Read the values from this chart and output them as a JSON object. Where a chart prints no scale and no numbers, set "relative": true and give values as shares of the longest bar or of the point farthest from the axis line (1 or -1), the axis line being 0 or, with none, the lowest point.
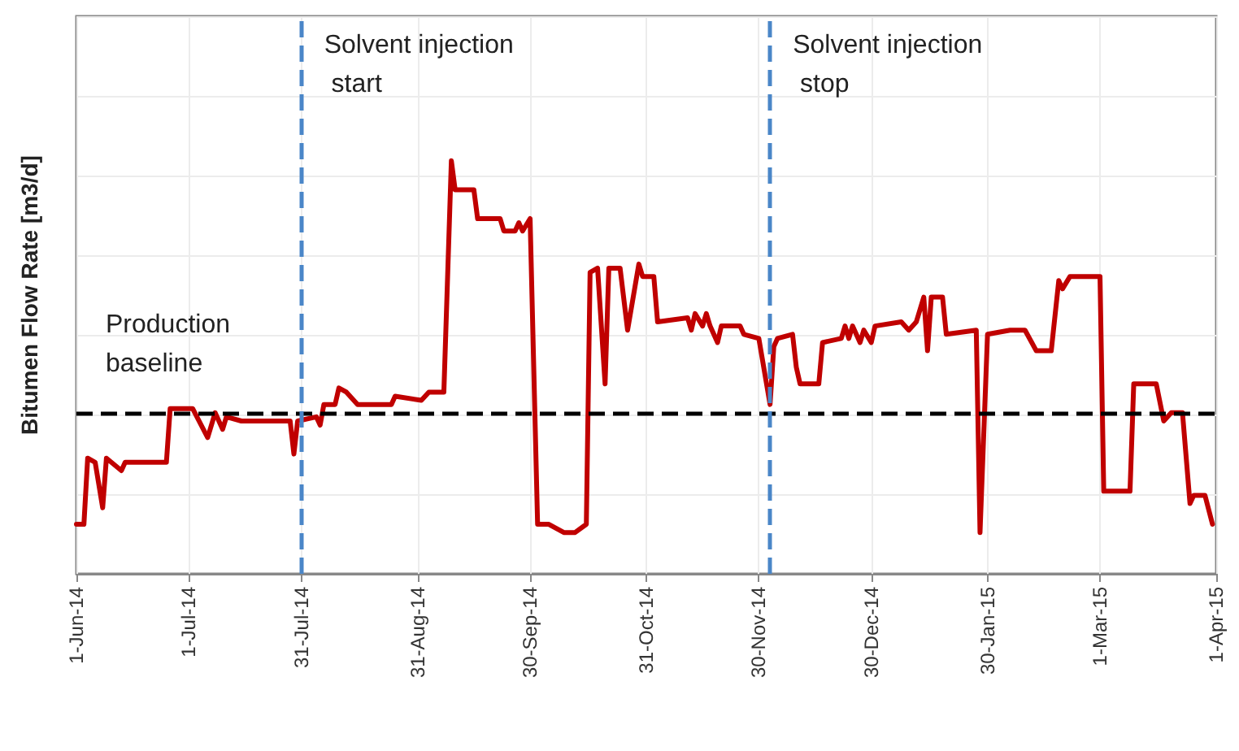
{
  "chart_data": {
    "type": "line",
    "ylabel": "Bitumen Flow Rate [m3/d]",
    "relative": true,
    "grid": true,
    "marker": "none",
    "line_style": "solid",
    "xlim": [
      "2014-06-01",
      "2015-04-01"
    ],
    "xticks": [
      {
        "value": "2014-06-01",
        "label": "1-Jun-14"
      },
      {
        "value": "2014-07-01",
        "label": "1-Jul-14"
      },
      {
        "value": "2014-07-31",
        "label": "31-Jul-14"
      },
      {
        "value": "2014-08-31",
        "label": "31-Aug-14"
      },
      {
        "value": "2014-09-30",
        "label": "30-Sep-14"
      },
      {
        "value": "2014-10-31",
        "label": "31-Oct-14"
      },
      {
        "value": "2014-11-30",
        "label": "30-Nov-14"
      },
      {
        "value": "2014-12-30",
        "label": "30-Dec-14"
      },
      {
        "value": "2015-01-30",
        "label": "30-Jan-15"
      },
      {
        "value": "2015-03-01",
        "label": "1-Mar-15"
      },
      {
        "value": "2015-04-01",
        "label": "1-Apr-15"
      }
    ],
    "x": [
      "2014-06-01",
      "2014-06-03",
      "2014-06-04",
      "2014-06-06",
      "2014-06-08",
      "2014-06-09",
      "2014-06-13",
      "2014-06-14",
      "2014-06-25",
      "2014-06-26",
      "2014-07-02",
      "2014-07-06",
      "2014-07-08",
      "2014-07-10",
      "2014-07-11",
      "2014-07-15",
      "2014-07-28",
      "2014-07-29",
      "2014-07-30",
      "2014-08-04",
      "2014-08-05",
      "2014-08-06",
      "2014-08-09",
      "2014-08-10",
      "2014-08-12",
      "2014-08-15",
      "2014-08-24",
      "2014-08-25",
      "2014-09-01",
      "2014-09-03",
      "2014-09-07",
      "2014-09-09",
      "2014-09-10",
      "2014-09-15",
      "2014-09-16",
      "2014-09-22",
      "2014-09-23",
      "2014-09-26",
      "2014-09-27",
      "2014-09-28",
      "2014-09-30",
      "2014-10-02",
      "2014-10-05",
      "2014-10-09",
      "2014-10-12",
      "2014-10-15",
      "2014-10-16",
      "2014-10-18",
      "2014-10-20",
      "2014-10-21",
      "2014-10-24",
      "2014-10-26",
      "2014-10-29",
      "2014-10-30",
      "2014-11-02",
      "2014-11-03",
      "2014-11-11",
      "2014-11-12",
      "2014-11-13",
      "2014-11-15",
      "2014-11-16",
      "2014-11-17",
      "2014-11-19",
      "2014-11-20",
      "2014-11-25",
      "2014-11-26",
      "2014-11-30",
      "2014-12-03",
      "2014-12-04",
      "2014-12-05",
      "2014-12-09",
      "2014-12-10",
      "2014-12-11",
      "2014-12-16",
      "2014-12-17",
      "2014-12-22",
      "2014-12-23",
      "2014-12-24",
      "2014-12-25",
      "2014-12-27",
      "2014-12-28",
      "2014-12-30",
      "2014-12-31",
      "2015-01-07",
      "2015-01-09",
      "2015-01-11",
      "2015-01-13",
      "2015-01-14",
      "2015-01-15",
      "2015-01-18",
      "2015-01-19",
      "2015-01-27",
      "2015-01-28",
      "2015-01-30",
      "2015-02-05",
      "2015-02-09",
      "2015-02-12",
      "2015-02-16",
      "2015-02-18",
      "2015-02-19",
      "2015-02-21",
      "2015-03-01",
      "2015-03-02",
      "2015-03-04",
      "2015-03-09",
      "2015-03-10",
      "2015-03-16",
      "2015-03-18",
      "2015-03-20",
      "2015-03-23",
      "2015-03-25",
      "2015-03-26",
      "2015-03-29",
      "2015-03-31"
    ],
    "series": [
      {
        "color": "#c00000",
        "values": [
          0.12,
          0.12,
          0.28,
          0.27,
          0.16,
          0.28,
          0.25,
          0.27,
          0.27,
          0.4,
          0.4,
          0.33,
          0.39,
          0.35,
          0.38,
          0.37,
          0.37,
          0.29,
          0.37,
          0.38,
          0.36,
          0.41,
          0.41,
          0.45,
          0.44,
          0.41,
          0.41,
          0.43,
          0.42,
          0.44,
          0.44,
          1.0,
          0.93,
          0.93,
          0.86,
          0.86,
          0.83,
          0.83,
          0.85,
          0.83,
          0.86,
          0.12,
          0.12,
          0.1,
          0.1,
          0.12,
          0.73,
          0.74,
          0.46,
          0.74,
          0.74,
          0.59,
          0.75,
          0.72,
          0.72,
          0.61,
          0.62,
          0.59,
          0.63,
          0.6,
          0.63,
          0.6,
          0.56,
          0.6,
          0.6,
          0.58,
          0.57,
          0.41,
          0.55,
          0.57,
          0.58,
          0.5,
          0.46,
          0.46,
          0.56,
          0.57,
          0.6,
          0.57,
          0.6,
          0.56,
          0.59,
          0.56,
          0.6,
          0.61,
          0.59,
          0.61,
          0.67,
          0.54,
          0.67,
          0.67,
          0.58,
          0.59,
          0.1,
          0.58,
          0.59,
          0.59,
          0.54,
          0.54,
          0.71,
          0.69,
          0.72,
          0.72,
          0.2,
          0.2,
          0.2,
          0.46,
          0.46,
          0.37,
          0.39,
          0.39,
          0.17,
          0.19,
          0.19,
          0.12
        ]
      }
    ],
    "ref_lines": [
      {
        "axis": "y",
        "value": 0.39,
        "label": "Production baseline",
        "color": "#000000",
        "line_style": "dashed"
      },
      {
        "axis": "x",
        "value": "2014-07-31",
        "label": "Solvent injection start",
        "color": "#4a86c8",
        "line_style": "dashed"
      },
      {
        "axis": "x",
        "value": "2014-12-03",
        "label": "Solvent injection stop",
        "color": "#4a86c8",
        "line_style": "dashed"
      }
    ]
  }
}
